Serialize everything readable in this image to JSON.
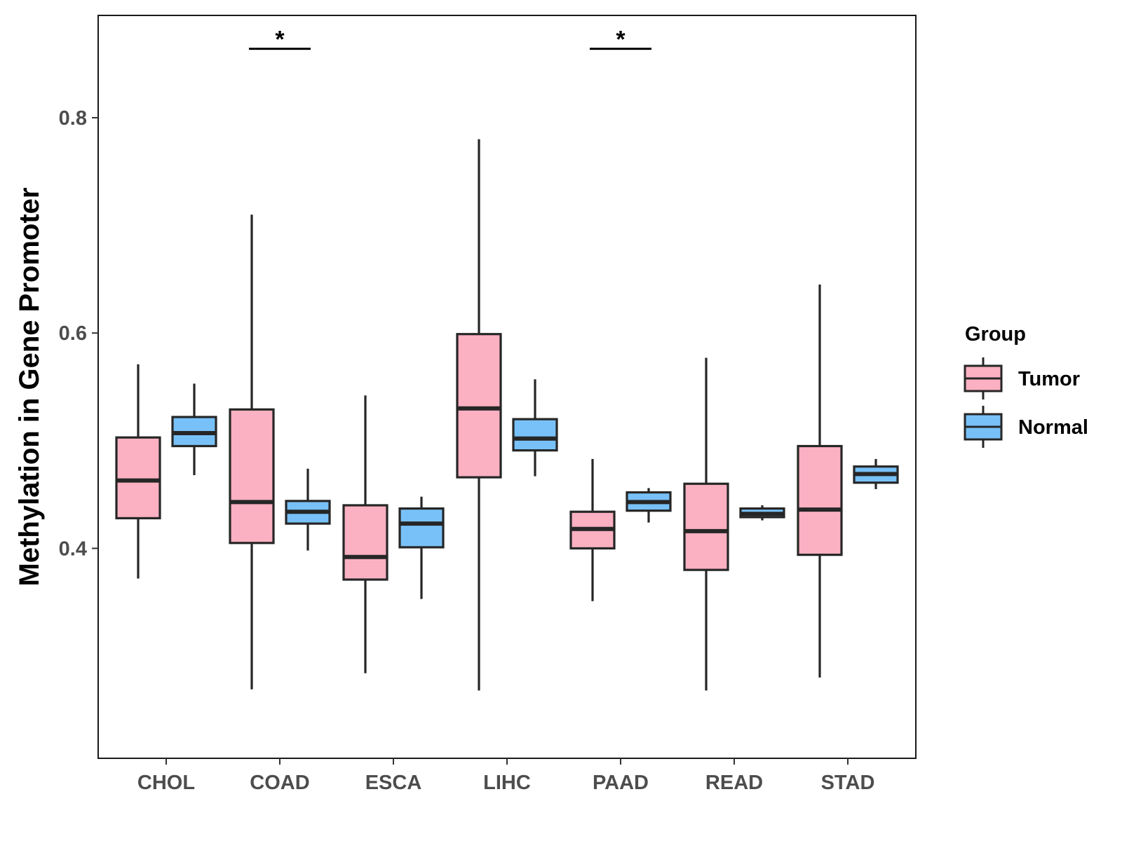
{
  "chart_data": {
    "type": "boxplot",
    "title": "",
    "xlabel": "",
    "ylabel": "Methylation in Gene Promoter",
    "ylim": [
      0.205,
      0.895
    ],
    "y_ticks": [
      "0.4",
      "0.6",
      "0.8"
    ],
    "y_tick_values": [
      0.4,
      0.6,
      0.8
    ],
    "grid": false,
    "legend": {
      "title": "Group",
      "position": "right"
    },
    "categories": [
      "CHOL",
      "COAD",
      "ESCA",
      "LIHC",
      "PAAD",
      "READ",
      "STAD"
    ],
    "series": [
      {
        "name": "Tumor",
        "color": "#FBB1C2",
        "boxes": [
          {
            "min": 0.372,
            "q1": 0.428,
            "median": 0.463,
            "q3": 0.503,
            "max": 0.571
          },
          {
            "min": 0.269,
            "q1": 0.405,
            "median": 0.443,
            "q3": 0.529,
            "max": 0.71
          },
          {
            "min": 0.284,
            "q1": 0.371,
            "median": 0.392,
            "q3": 0.44,
            "max": 0.542
          },
          {
            "min": 0.268,
            "q1": 0.466,
            "median": 0.53,
            "q3": 0.599,
            "max": 0.78
          },
          {
            "min": 0.351,
            "q1": 0.4,
            "median": 0.418,
            "q3": 0.434,
            "max": 0.483
          },
          {
            "min": 0.268,
            "q1": 0.38,
            "median": 0.416,
            "q3": 0.46,
            "max": 0.577
          },
          {
            "min": 0.28,
            "q1": 0.394,
            "median": 0.436,
            "q3": 0.495,
            "max": 0.645
          }
        ]
      },
      {
        "name": "Normal",
        "color": "#78C1F8",
        "boxes": [
          {
            "min": 0.468,
            "q1": 0.495,
            "median": 0.507,
            "q3": 0.522,
            "max": 0.553
          },
          {
            "min": 0.398,
            "q1": 0.423,
            "median": 0.434,
            "q3": 0.444,
            "max": 0.474
          },
          {
            "min": 0.353,
            "q1": 0.401,
            "median": 0.423,
            "q3": 0.437,
            "max": 0.448
          },
          {
            "min": 0.467,
            "q1": 0.491,
            "median": 0.502,
            "q3": 0.52,
            "max": 0.557
          },
          {
            "min": 0.424,
            "q1": 0.435,
            "median": 0.443,
            "q3": 0.452,
            "max": 0.456
          },
          {
            "min": 0.426,
            "q1": 0.429,
            "median": 0.432,
            "q3": 0.437,
            "max": 0.44
          },
          {
            "min": 0.455,
            "q1": 0.461,
            "median": 0.469,
            "q3": 0.476,
            "max": 0.483
          }
        ]
      }
    ],
    "significance": [
      {
        "category": "COAD",
        "label": "*",
        "y": 0.864
      },
      {
        "category": "PAAD",
        "label": "*",
        "y": 0.864
      }
    ]
  }
}
